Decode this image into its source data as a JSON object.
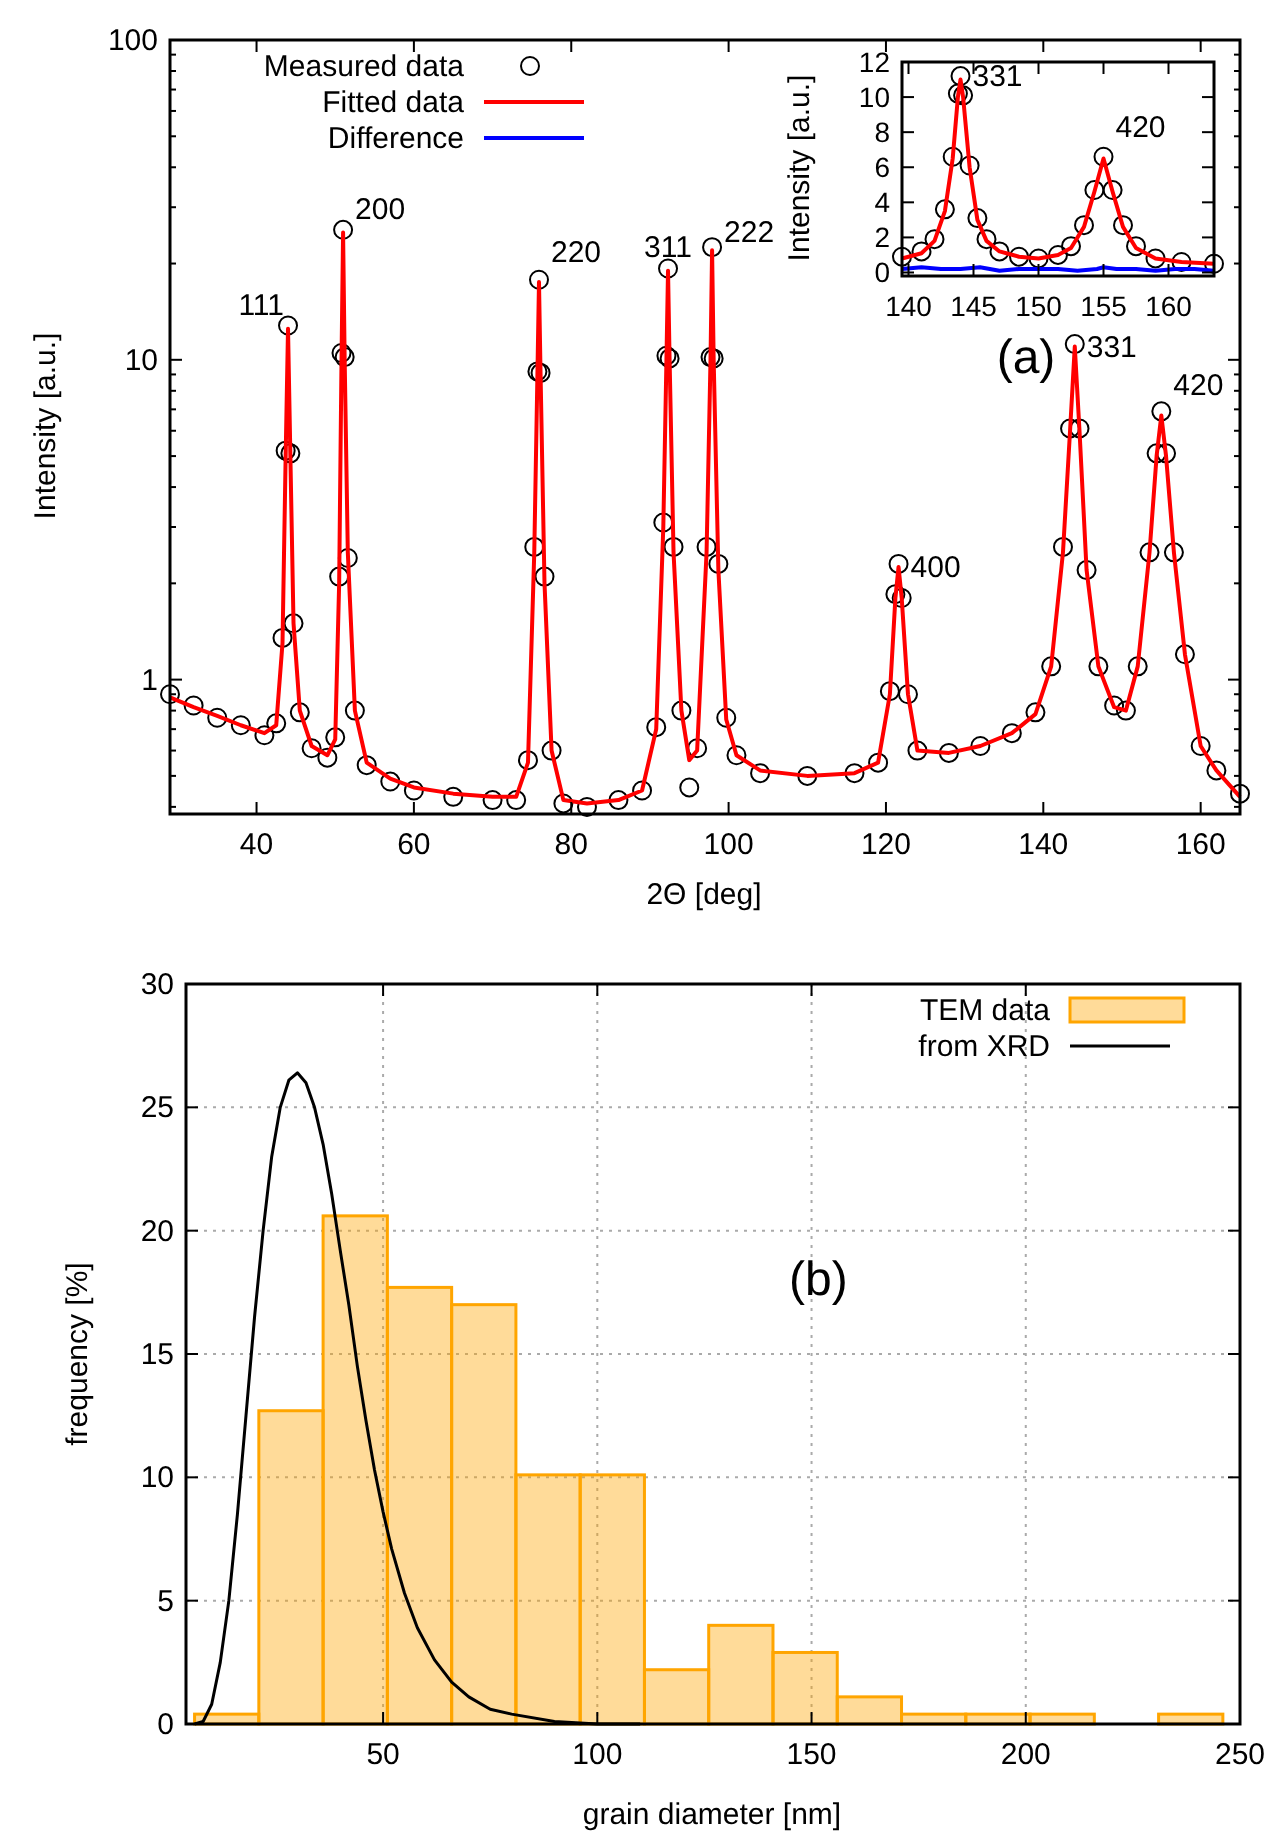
{
  "chart_data": [
    {
      "type": "scatter",
      "xlabel": "2Θ [deg]",
      "ylabel": "Intensity [a.u.]",
      "log": true,
      "legend": "top left",
      "xlim": [
        29,
        165
      ],
      "ylim": [
        0.38,
        100
      ],
      "xticks": [
        40,
        60,
        80,
        100,
        120,
        140,
        160
      ],
      "yticks": [
        {
          "value": 0.4,
          "label": null
        },
        {
          "value": 0.5,
          "label": null
        },
        {
          "value": 0.6,
          "label": null
        },
        {
          "value": 0.7,
          "label": null
        },
        {
          "value": 0.8,
          "label": null
        },
        {
          "value": 0.9,
          "label": null
        },
        1,
        {
          "value": 2,
          "label": null
        },
        {
          "value": 3,
          "label": null
        },
        {
          "value": 4,
          "label": null
        },
        {
          "value": 5,
          "label": null
        },
        {
          "value": 6,
          "label": null
        },
        {
          "value": 7,
          "label": null
        },
        {
          "value": 8,
          "label": null
        },
        {
          "value": 9,
          "label": null
        },
        10,
        {
          "value": 20,
          "label": null
        },
        {
          "value": 30,
          "label": null
        },
        {
          "value": 40,
          "label": null
        },
        {
          "value": 50,
          "label": null
        },
        {
          "value": 60,
          "label": null
        },
        {
          "value": 70,
          "label": null
        },
        {
          "value": 80,
          "label": null
        },
        {
          "value": 90,
          "label": null
        },
        100
      ],
      "x": [
        29,
        32,
        35,
        38,
        41,
        42.5,
        43.3,
        43.7,
        44,
        44.3,
        44.7,
        45.5,
        47,
        49,
        50,
        50.5,
        50.8,
        51,
        51.2,
        51.6,
        52.5,
        54,
        57,
        60,
        65,
        70,
        73,
        74.5,
        75.3,
        75.7,
        75.9,
        76.1,
        76.6,
        77.5,
        79,
        82,
        86,
        89,
        90.8,
        91.7,
        92.1,
        92.3,
        92.5,
        93,
        94,
        95,
        96,
        97.2,
        97.7,
        97.9,
        98.1,
        98.7,
        99.7,
        101,
        104,
        110,
        116,
        119,
        120.5,
        121.2,
        121.6,
        122,
        122.8,
        124,
        128,
        132,
        136,
        139,
        141,
        142.5,
        143.4,
        144,
        144.6,
        145.5,
        147,
        149,
        150.5,
        152,
        153.5,
        154.4,
        155,
        155.6,
        156.6,
        158,
        160,
        162,
        165
      ],
      "series": [
        {
          "name": "Measured data",
          "marker": "circle",
          "color": "#000000",
          "values": [
            0.9,
            0.83,
            0.76,
            0.72,
            0.67,
            0.73,
            1.35,
            5.2,
            12.8,
            5.1,
            1.5,
            0.79,
            0.61,
            0.57,
            0.66,
            2.1,
            10.5,
            25.5,
            10.2,
            2.4,
            0.8,
            0.54,
            0.48,
            0.45,
            0.43,
            0.42,
            0.42,
            0.56,
            2.6,
            9.2,
            17.8,
            9.1,
            2.1,
            0.6,
            0.41,
            0.4,
            0.42,
            0.45,
            0.71,
            3.1,
            10.3,
            19.3,
            10.1,
            2.6,
            0.8,
            0.46,
            0.61,
            2.6,
            10.2,
            22.5,
            10.1,
            2.3,
            0.76,
            0.58,
            0.51,
            0.5,
            0.51,
            0.55,
            0.92,
            1.85,
            2.3,
            1.8,
            0.9,
            0.6,
            0.59,
            0.62,
            0.68,
            0.79,
            1.1,
            2.6,
            6.1,
            11.2,
            6.1,
            2.2,
            1.1,
            0.83,
            0.8,
            1.1,
            2.5,
            5.1,
            6.9,
            5.1,
            2.5,
            1.2,
            0.62,
            0.52,
            0.44
          ]
        },
        {
          "name": "Fitted data",
          "type": "line",
          "color": "#ff0000",
          "values": [
            0.88,
            0.82,
            0.77,
            0.72,
            0.68,
            0.72,
            1.3,
            5,
            12.5,
            5,
            1.5,
            0.8,
            0.62,
            0.58,
            0.65,
            2,
            10,
            25,
            10,
            2.5,
            0.8,
            0.55,
            0.49,
            0.46,
            0.44,
            0.43,
            0.43,
            0.55,
            2.5,
            9,
            17.5,
            9,
            2,
            0.6,
            0.42,
            0.41,
            0.42,
            0.45,
            0.7,
            3,
            10,
            19,
            10,
            2.5,
            0.8,
            0.56,
            0.6,
            2.5,
            10,
            22,
            10,
            2.2,
            0.75,
            0.58,
            0.52,
            0.5,
            0.51,
            0.55,
            0.9,
            1.8,
            2.25,
            1.8,
            0.9,
            0.6,
            0.59,
            0.62,
            0.68,
            0.78,
            1.1,
            2.5,
            6,
            11,
            6,
            2.2,
            1.1,
            0.82,
            0.8,
            1.1,
            2.5,
            5,
            6.7,
            5,
            2.5,
            1.2,
            0.62,
            0.52,
            0.43
          ]
        }
      ],
      "annotations": [
        {
          "text": "111",
          "x": 44,
          "y": 12.5
        },
        {
          "text": "200",
          "x": 51,
          "y": 25
        },
        {
          "text": "220",
          "x": 75.9,
          "y": 17.5
        },
        {
          "text": "311",
          "x": 92.3,
          "y": 19
        },
        {
          "text": "222",
          "x": 97.9,
          "y": 22
        },
        {
          "text": "400",
          "x": 121.6,
          "y": 2.25
        },
        {
          "text": "331",
          "x": 144,
          "y": 11
        },
        {
          "text": "420",
          "x": 155,
          "y": 6.7
        },
        "(a)"
      ]
    },
    {
      "type": "scatter",
      "ylabel": "Intensity [a.u.]",
      "legend": "left",
      "xlim": [
        139.5,
        163.5
      ],
      "ylim": [
        -0.2,
        12
      ],
      "xticks": [
        140,
        145,
        150,
        155,
        160
      ],
      "yticks": [
        0,
        2,
        4,
        6,
        8,
        10,
        12
      ],
      "x": [
        139.5,
        141,
        142,
        142.8,
        143.4,
        143.8,
        144,
        144.2,
        144.7,
        145.3,
        146,
        147,
        148.5,
        150,
        151.5,
        152.5,
        153.5,
        154.3,
        155,
        155.7,
        156.5,
        157.5,
        159,
        161,
        163.5
      ],
      "series": [
        {
          "marker": "circle",
          "color": "#000000",
          "values": [
            0.9,
            1.2,
            1.9,
            3.6,
            6.6,
            10.2,
            11.2,
            10.1,
            6.1,
            3.1,
            1.9,
            1.2,
            0.9,
            0.8,
            1,
            1.5,
            2.7,
            4.7,
            6.6,
            4.7,
            2.7,
            1.5,
            0.8,
            0.6,
            0.5
          ]
        },
        {
          "type": "line",
          "color": "#ff0000",
          "values": [
            0.8,
            1.1,
            1.8,
            3.5,
            6.5,
            10,
            11,
            10,
            6,
            3,
            1.8,
            1.2,
            0.9,
            0.8,
            1,
            1.4,
            2.6,
            4.6,
            6.5,
            4.6,
            2.6,
            1.4,
            0.8,
            0.6,
            0.5
          ]
        },
        {
          "name": "Difference",
          "type": "line",
          "color": "#0000ff",
          "x": [
            139.5,
            141,
            142.5,
            144,
            145.5,
            147,
            148.5,
            150,
            151.5,
            153,
            154.5,
            155,
            156,
            157.5,
            159,
            160.5,
            162,
            163.5
          ],
          "values": [
            0.2,
            0.3,
            0.2,
            0.2,
            0.3,
            0.1,
            0.2,
            0.2,
            0.2,
            0.1,
            0.2,
            0.3,
            0.2,
            0.2,
            0.1,
            0.2,
            0.2,
            0.1
          ]
        }
      ],
      "annotations": [
        {
          "text": "331",
          "x": 144,
          "y": 11.2
        },
        {
          "text": "420",
          "x": 155,
          "y": 6.6
        }
      ]
    },
    {
      "type": "histogram",
      "xlabel": "grain diameter [nm]",
      "ylabel": "frequency [%]",
      "legend": "top right",
      "grid": true,
      "xlim": [
        4,
        250
      ],
      "ylim": [
        0,
        30
      ],
      "xticks": [
        50,
        100,
        150,
        200,
        250
      ],
      "yticks": [
        0,
        5,
        10,
        15,
        20,
        25,
        30
      ],
      "bins": [
        6,
        21,
        36,
        51,
        66,
        81,
        96,
        111,
        126,
        141,
        156,
        171,
        186,
        201,
        216,
        231,
        246
      ],
      "series": [
        {
          "name": "TEM data",
          "color": "#ffa500",
          "values": [
            0.4,
            12.7,
            20.6,
            17.7,
            17.0,
            10.1,
            10.1,
            2.2,
            4.0,
            2.9,
            1.1,
            0.4,
            0.4,
            0.4,
            0,
            0.4
          ]
        },
        {
          "name": "from XRD",
          "type": "line",
          "color": "#000000",
          "x": [
            6,
            8,
            10,
            12,
            14,
            16,
            18,
            20,
            22,
            24,
            26,
            28,
            30,
            32,
            34,
            36,
            38,
            40,
            42,
            44,
            46,
            48,
            50,
            52,
            55,
            58,
            62,
            66,
            70,
            75,
            80,
            90,
            100,
            110
          ],
          "values": [
            0,
            0.1,
            0.8,
            2.5,
            5,
            8.5,
            12.5,
            16.5,
            20,
            23,
            25,
            26.1,
            26.4,
            26,
            25,
            23.5,
            21.5,
            19.2,
            17,
            14.5,
            12.3,
            10.3,
            8.6,
            7.1,
            5.3,
            3.9,
            2.6,
            1.7,
            1.1,
            0.6,
            0.4,
            0.1,
            0,
            0
          ]
        }
      ],
      "annotations": [
        "(b)"
      ]
    }
  ]
}
